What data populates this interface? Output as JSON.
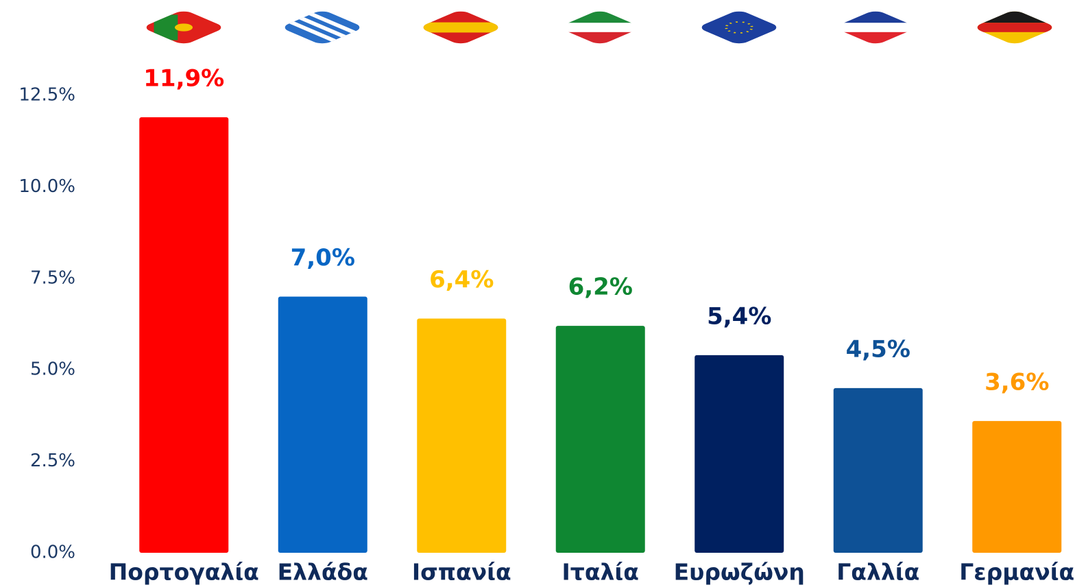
{
  "chart_data": {
    "type": "bar",
    "categories": [
      "Πορτογαλία",
      "Ελλάδα",
      "Ισπανία",
      "Ιταλία",
      "Ευρωζώνη",
      "Γαλλία",
      "Γερμανία"
    ],
    "values": [
      11.9,
      7.0,
      6.4,
      6.2,
      5.4,
      4.5,
      3.6
    ],
    "value_labels": [
      "11,9%",
      "7,0%",
      "6,4%",
      "6,2%",
      "5,4%",
      "4,5%",
      "3,6%"
    ],
    "colors": [
      "#ff0000",
      "#0766c4",
      "#ffc000",
      "#0f8732",
      "#002060",
      "#0e5196",
      "#ff9900"
    ],
    "ylim": [
      0,
      12.5
    ],
    "yticks": [
      {
        "value": 0,
        "label": "0.0%"
      },
      {
        "value": 2.5,
        "label": "2.5%"
      },
      {
        "value": 5,
        "label": "5.0%"
      },
      {
        "value": 7.5,
        "label": "7.5%"
      },
      {
        "value": 10,
        "label": "10.0%"
      },
      {
        "value": 12.5,
        "label": "12.5%"
      }
    ],
    "grid": false
  }
}
